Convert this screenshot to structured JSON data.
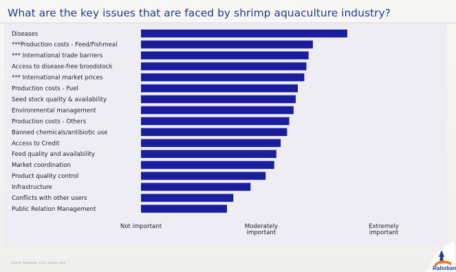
{
  "title": "What are the key issues that are faced by shrimp aquaculture industry?",
  "footer": "Source: Rabobank, GOAL Survey, 2005",
  "logo_text": "Rabobank",
  "colors": {
    "bar": "#1a1d9e",
    "title": "#1f3c98",
    "label": "#1a1a2e",
    "panel": "#ededf3"
  },
  "chart_data": {
    "type": "bar",
    "orientation": "horizontal",
    "title": "What are the key issues that are faced by shrimp aquaculture industry?",
    "categories": [
      "Diseases",
      "***Production costs - Feed/Fishmeal",
      "*** International trade barriers",
      "Access to disease-free broodstock",
      "*** International market prices",
      "Production costs - Fuel",
      "Seed stock quality & availability",
      "Environmental management",
      "Production costs - Others",
      "Banned chemicals/antibiotic use",
      "Access to Credit",
      "Feed quality and availability",
      "Market coordination",
      "Product quality control",
      "Infrastructure",
      "Conflicts with other users",
      "Public Relation Management"
    ],
    "values": [
      0.96,
      0.8,
      0.78,
      0.77,
      0.76,
      0.73,
      0.72,
      0.71,
      0.69,
      0.68,
      0.65,
      0.63,
      0.62,
      0.58,
      0.51,
      0.43,
      0.4
    ],
    "x_tick_labels": [
      {
        "lines": [
          "Not important"
        ],
        "value": 0.0
      },
      {
        "lines": [
          "Moderately",
          "important"
        ],
        "value": 0.56
      },
      {
        "lines": [
          "Extremely",
          "important"
        ],
        "value": 1.13
      }
    ],
    "xlim": [
      0,
      1.13
    ],
    "grid": false,
    "legend": "none"
  }
}
